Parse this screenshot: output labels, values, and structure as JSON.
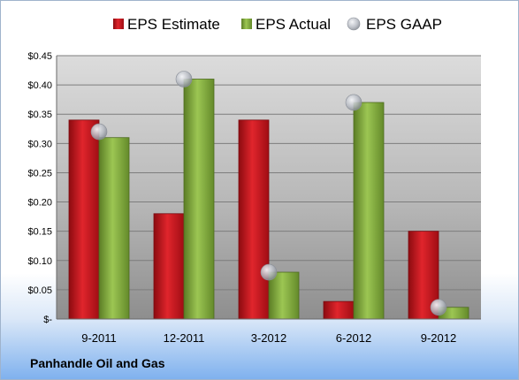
{
  "company": "Panhandle Oil and Gas",
  "colors": {
    "estimate": "#c0141d",
    "actual": "#7ea83c",
    "gaap": "#b8bcc4"
  },
  "chart_data": {
    "type": "bar",
    "categories": [
      "9-2011",
      "12-2011",
      "3-2012",
      "6-2012",
      "9-2012"
    ],
    "series": [
      {
        "name": "EPS Estimate",
        "values": [
          0.34,
          0.18,
          0.34,
          0.03,
          0.15
        ]
      },
      {
        "name": "EPS Actual",
        "values": [
          0.31,
          0.41,
          0.08,
          0.37,
          0.02
        ]
      },
      {
        "name": "EPS GAAP",
        "style": "marker",
        "values": [
          0.32,
          0.41,
          0.08,
          0.37,
          0.02
        ]
      }
    ],
    "ylim": [
      0,
      0.45
    ],
    "yticks": [
      0,
      0.05,
      0.1,
      0.15,
      0.2,
      0.25,
      0.3,
      0.35,
      0.4,
      0.45
    ],
    "ytick_labels": [
      "$-",
      "$0.05",
      "$0.10",
      "$0.15",
      "$0.20",
      "$0.25",
      "$0.30",
      "$0.35",
      "$0.40",
      "$0.45"
    ],
    "legend_position": "top",
    "grid": true
  }
}
